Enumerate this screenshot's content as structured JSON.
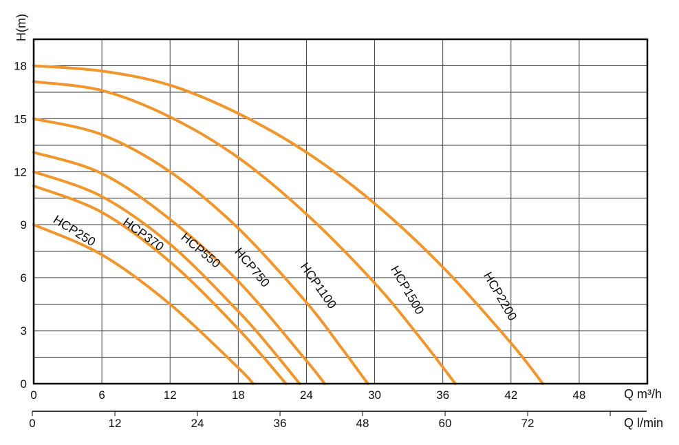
{
  "chart_data": {
    "type": "line",
    "ylabel": "H(m)",
    "xlabel": "Q m³/h",
    "xlabel_secondary": "Q l/min",
    "xlim": [
      0,
      54
    ],
    "ylim": [
      0,
      19.5
    ],
    "x_ticks": [
      0,
      6,
      12,
      18,
      24,
      30,
      36,
      42,
      48
    ],
    "y_ticks": [
      0,
      3,
      6,
      9,
      12,
      15,
      18
    ],
    "y_minor_step": 1.5,
    "x_secondary_ticks": [
      0,
      12,
      24,
      36,
      48,
      60,
      72
    ],
    "x_secondary_unlabeled_ticks": [
      84
    ],
    "grid": true,
    "line_color": "#F0962D",
    "series": [
      {
        "name": "HCP250",
        "points": [
          [
            0,
            9
          ],
          [
            6,
            7.3
          ],
          [
            12,
            4.5
          ],
          [
            18,
            0.9
          ],
          [
            19.3,
            0
          ]
        ]
      },
      {
        "name": "HCP370",
        "points": [
          [
            0,
            11.2
          ],
          [
            6,
            9.7
          ],
          [
            12,
            6.9
          ],
          [
            18,
            3.1
          ],
          [
            22.2,
            0
          ]
        ]
      },
      {
        "name": "HCP550",
        "points": [
          [
            0,
            12
          ],
          [
            6,
            10.6
          ],
          [
            12,
            7.9
          ],
          [
            18,
            4.1
          ],
          [
            21,
            1.9
          ],
          [
            23.4,
            0
          ]
        ]
      },
      {
        "name": "HCP750",
        "points": [
          [
            0,
            13.1
          ],
          [
            6,
            11.9
          ],
          [
            12,
            9.3
          ],
          [
            18,
            5.8
          ],
          [
            24,
            1.3
          ],
          [
            25.6,
            0
          ]
        ]
      },
      {
        "name": "HCP1100",
        "points": [
          [
            0,
            15
          ],
          [
            6,
            14.1
          ],
          [
            12,
            12
          ],
          [
            18,
            8.8
          ],
          [
            24,
            4.6
          ],
          [
            27,
            2.1
          ],
          [
            29.4,
            0
          ]
        ]
      },
      {
        "name": "HCP1500",
        "points": [
          [
            0,
            17.1
          ],
          [
            6,
            16.6
          ],
          [
            12,
            15.1
          ],
          [
            18,
            12.8
          ],
          [
            24,
            9.6
          ],
          [
            30,
            5.7
          ],
          [
            34,
            2.6
          ],
          [
            37.1,
            0
          ]
        ]
      },
      {
        "name": "HCP2200",
        "points": [
          [
            0,
            18
          ],
          [
            6,
            17.7
          ],
          [
            12,
            16.9
          ],
          [
            18,
            15.3
          ],
          [
            24,
            13.1
          ],
          [
            30,
            10.2
          ],
          [
            36,
            6.6
          ],
          [
            42,
            2.3
          ],
          [
            44.8,
            0
          ]
        ]
      }
    ]
  }
}
